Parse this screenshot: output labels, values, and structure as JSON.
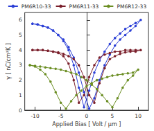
{
  "chart_data": {
    "type": "line",
    "x_label": "Applied Bias [ Volt / μm ]",
    "y_label": "γ [ nC/cm²K ]",
    "xlim": [
      -12,
      12
    ],
    "xticks": [
      -10,
      -5,
      0,
      5,
      10
    ],
    "ylim": [
      0,
      6.5
    ],
    "yticks": [
      0,
      1,
      2,
      3,
      4,
      5,
      6
    ],
    "grid": false,
    "legend": "top",
    "marker": "circle",
    "series": [
      {
        "name": "PM6R10-33",
        "color": "#2b3fd6",
        "x": [
          -10.5,
          -9.5,
          -8.5,
          -7.5,
          -6.5,
          -5.5,
          -4.5,
          -3.5,
          -2.5,
          -1.5,
          -0.5,
          0.5,
          1.5,
          2.5,
          3.5,
          4.5,
          5.5,
          6.5,
          7.5,
          8.5,
          9.5,
          10.5,
          9.5,
          8.5,
          7.5,
          6.5,
          5.5,
          4.5,
          3.5,
          2.5,
          1.5,
          0.5,
          -0.5,
          -1.5,
          -2.5,
          -3.5,
          -4.5,
          -5.5,
          -6.5,
          -7.5,
          -8.5,
          -9.5,
          -10.5
        ],
        "values": [
          5.75,
          5.7,
          5.6,
          5.5,
          5.3,
          5.0,
          4.6,
          4.0,
          3.0,
          1.5,
          0.2,
          1.3,
          2.5,
          3.3,
          3.9,
          4.4,
          4.8,
          5.1,
          5.4,
          5.6,
          5.8,
          6.0,
          5.6,
          5.3,
          5.0,
          4.7,
          4.3,
          3.7,
          3.0,
          2.0,
          0.8,
          0.1,
          1.2,
          2.5,
          3.5,
          4.2,
          4.7,
          5.0,
          5.3,
          5.5,
          5.6,
          5.7,
          5.75
        ]
      },
      {
        "name": "PM6R11-33",
        "color": "#7a1f2b",
        "x": [
          -10.5,
          -9.5,
          -8.5,
          -7.5,
          -6.5,
          -5.5,
          -4.5,
          -3.5,
          -2.5,
          -1.5,
          -0.5,
          0.5,
          1.5,
          2.5,
          3.5,
          4.5,
          5.5,
          6.5,
          7.5,
          8.5,
          9.5,
          10.5,
          9.5,
          8.5,
          7.5,
          6.5,
          5.5,
          4.5,
          3.5,
          2.5,
          1.5,
          0.5,
          -0.5,
          -1.5,
          -2.5,
          -3.5,
          -4.5,
          -5.5,
          -6.5,
          -7.5,
          -8.5,
          -9.5,
          -10.5
        ],
        "values": [
          4.0,
          4.0,
          4.0,
          3.95,
          3.9,
          3.8,
          3.6,
          3.1,
          2.0,
          0.5,
          1.0,
          2.2,
          3.0,
          3.5,
          3.7,
          3.8,
          3.9,
          3.9,
          4.0,
          4.0,
          4.0,
          4.0,
          3.9,
          3.9,
          3.85,
          3.75,
          3.6,
          3.4,
          2.8,
          1.8,
          0.5,
          1.0,
          2.2,
          3.0,
          3.4,
          3.6,
          3.75,
          3.85,
          3.9,
          3.95,
          4.0,
          4.0,
          4.0
        ]
      },
      {
        "name": "PM6R12-33",
        "color": "#6b8e23",
        "x": [
          -11,
          -10,
          -9,
          -8,
          -7,
          -6,
          -5,
          -4,
          -3,
          -2,
          -1,
          0,
          1,
          2,
          3,
          4,
          5,
          6,
          7,
          8,
          9,
          10,
          9,
          8,
          7,
          6,
          5,
          4,
          3,
          2,
          1,
          0,
          -1,
          -2,
          -3,
          -4,
          -5,
          -6,
          -7,
          -8,
          -9,
          -10,
          -11
        ],
        "values": [
          3.0,
          2.9,
          2.7,
          2.4,
          1.9,
          1.2,
          0.5,
          0.1,
          0.6,
          1.0,
          1.3,
          1.6,
          1.8,
          2.0,
          2.1,
          2.2,
          2.3,
          2.35,
          2.4,
          2.45,
          2.5,
          2.7,
          2.3,
          2.0,
          1.5,
          0.8,
          0.2,
          0.6,
          1.0,
          1.4,
          1.7,
          2.0,
          2.2,
          2.4,
          2.5,
          2.6,
          2.7,
          2.75,
          2.8,
          2.85,
          2.9,
          2.95,
          3.0
        ]
      }
    ]
  }
}
